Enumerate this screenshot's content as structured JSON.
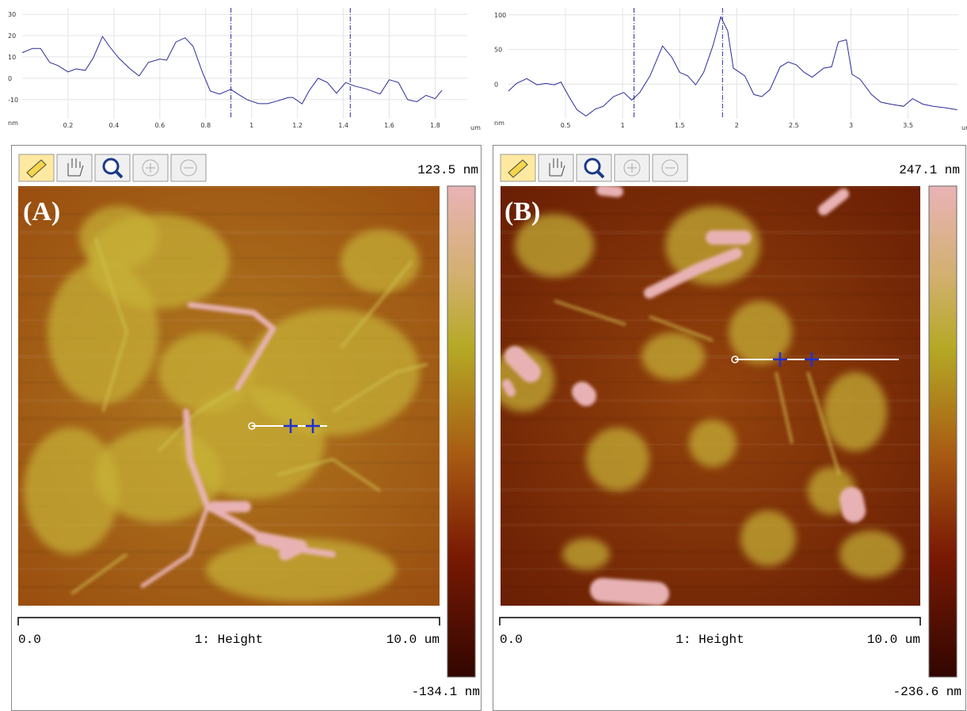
{
  "chart_data": [
    {
      "type": "line",
      "x_label": "um",
      "y_label": "nm",
      "color": "#2a2a9a",
      "grid": true,
      "xlim": [
        0,
        1.94
      ],
      "ylim": [
        -19,
        33
      ],
      "xticks": [
        0.2,
        0.4,
        0.6,
        0.8,
        1,
        1.2,
        1.4,
        1.6,
        1.8
      ],
      "yticks": [
        -10,
        0,
        10,
        20,
        30
      ],
      "cursors": [
        0.91,
        1.43
      ],
      "x": [
        0,
        0.045,
        0.08,
        0.12,
        0.155,
        0.2,
        0.235,
        0.275,
        0.31,
        0.35,
        0.38,
        0.42,
        0.47,
        0.51,
        0.55,
        0.6,
        0.63,
        0.67,
        0.71,
        0.745,
        0.785,
        0.82,
        0.86,
        0.91,
        0.94,
        0.98,
        1.03,
        1.07,
        1.11,
        1.16,
        1.18,
        1.22,
        1.25,
        1.29,
        1.33,
        1.37,
        1.41,
        1.45,
        1.5,
        1.56,
        1.6,
        1.64,
        1.68,
        1.72,
        1.76,
        1.8,
        1.83
      ],
      "values": [
        12,
        14,
        14,
        7.4,
        6,
        3,
        4.4,
        3.7,
        9.6,
        19.6,
        15,
        9.6,
        4.4,
        1.1,
        7.4,
        9,
        8.5,
        17,
        19,
        15,
        3,
        -6,
        -7.4,
        -5.2,
        -7.4,
        -10,
        -11.9,
        -11.9,
        -10.7,
        -9,
        -9,
        -12,
        -6,
        0,
        -2,
        -7,
        -2,
        -3.7,
        -5,
        -7.4,
        -0.7,
        -2,
        -10,
        -11,
        -8,
        -9.6,
        -5.6
      ]
    },
    {
      "type": "line",
      "x_label": "um",
      "y_label": "nm",
      "color": "#2a2a9a",
      "grid": true,
      "xlim": [
        0,
        3.94
      ],
      "ylim": [
        -50,
        110
      ],
      "xticks": [
        0.5,
        1,
        1.5,
        2,
        2.5,
        3,
        3.5
      ],
      "yticks": [
        0,
        50,
        100
      ],
      "cursors": [
        1.1,
        1.875
      ],
      "x": [
        0,
        0.07,
        0.16,
        0.25,
        0.33,
        0.4,
        0.46,
        0.53,
        0.6,
        0.68,
        0.76,
        0.83,
        0.92,
        1.01,
        1.08,
        1.15,
        1.24,
        1.35,
        1.43,
        1.5,
        1.57,
        1.64,
        1.71,
        1.79,
        1.86,
        1.92,
        1.97,
        2.07,
        2.15,
        2.22,
        2.29,
        2.38,
        2.45,
        2.52,
        2.59,
        2.66,
        2.76,
        2.83,
        2.89,
        2.96,
        3.01,
        3.08,
        3.18,
        3.26,
        3.35,
        3.46,
        3.54,
        3.63,
        3.72,
        3.82,
        3.93
      ],
      "values": [
        -10,
        1,
        8,
        -1,
        1,
        -1,
        3,
        -18,
        -37,
        -46,
        -36,
        -32,
        -18,
        -12,
        -23,
        -12,
        12,
        55,
        39,
        17,
        12,
        -1,
        17,
        55,
        97,
        77,
        23,
        12,
        -15,
        -18,
        -8,
        25,
        32,
        28,
        17,
        10,
        23,
        25,
        61,
        64,
        14,
        7,
        -15,
        -26,
        -29,
        -32,
        -21,
        -29,
        -32,
        -34,
        -37
      ]
    }
  ],
  "panels": [
    {
      "label": "(A)",
      "scale_max": "123.5 nm",
      "scale_min": "-134.1 nm",
      "x_start": "0.0",
      "channel": "1: Height",
      "x_end": "10.0 um"
    },
    {
      "label": "(B)",
      "scale_max": "247.1 nm",
      "scale_min": "-236.6 nm",
      "x_start": "0.0",
      "channel": "1: Height",
      "x_end": "10.0 um"
    }
  ]
}
